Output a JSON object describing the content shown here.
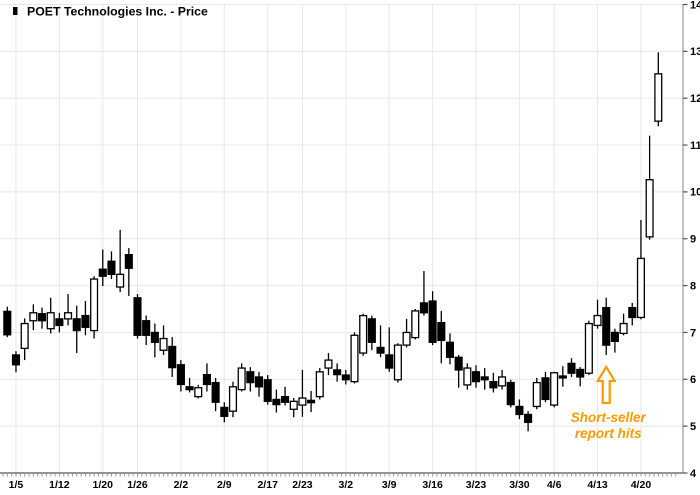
{
  "header": {
    "marker": "candlestick-bullet",
    "title": "POET Technologies Inc. - Price"
  },
  "colors": {
    "background": "#ffffff",
    "candle_up_fill": "#ffffff",
    "candle_down_fill": "#000000",
    "candle_border": "#000000",
    "grid": "#e8e8e8",
    "axis_line": "#555555",
    "right_axis_line": "#999999",
    "tick": "#999999",
    "label_text": "#000000",
    "annotation_orange": "#FF9900"
  },
  "chart_data": {
    "type": "candlestick",
    "title": "POET Technologies Inc. - Price",
    "xlabel": "",
    "ylabel": "",
    "ylim": [
      4,
      14
    ],
    "y_ticks": [
      4,
      5,
      6,
      7,
      8,
      9,
      10,
      11,
      12,
      13,
      14
    ],
    "grid": true,
    "x_tick_labels": [
      "1/5",
      "1/12",
      "1/20",
      "1/26",
      "2/2",
      "2/9",
      "2/17",
      "2/23",
      "3/2",
      "3/9",
      "3/16",
      "3/23",
      "3/30",
      "4/6",
      "4/13",
      "4/20"
    ],
    "candles": [
      {
        "date": "1/4",
        "o": 7.45,
        "h": 7.55,
        "l": 6.9,
        "c": 6.95
      },
      {
        "date": "1/5",
        "o": 6.52,
        "h": 6.6,
        "l": 6.15,
        "c": 6.31
      },
      {
        "date": "1/6",
        "o": 6.66,
        "h": 7.3,
        "l": 6.41,
        "c": 7.19
      },
      {
        "date": "1/7",
        "o": 7.25,
        "h": 7.6,
        "l": 7.05,
        "c": 7.42
      },
      {
        "date": "1/8",
        "o": 7.4,
        "h": 7.53,
        "l": 7.08,
        "c": 7.25
      },
      {
        "date": "1/11",
        "o": 7.08,
        "h": 7.74,
        "l": 6.98,
        "c": 7.42
      },
      {
        "date": "1/12",
        "o": 7.29,
        "h": 7.42,
        "l": 7.0,
        "c": 7.15
      },
      {
        "date": "1/13",
        "o": 7.29,
        "h": 7.82,
        "l": 7.15,
        "c": 7.42
      },
      {
        "date": "1/14",
        "o": 7.29,
        "h": 7.57,
        "l": 6.56,
        "c": 7.04
      },
      {
        "date": "1/15",
        "o": 7.36,
        "h": 7.67,
        "l": 6.94,
        "c": 7.11
      },
      {
        "date": "1/19",
        "o": 7.04,
        "h": 8.2,
        "l": 6.87,
        "c": 8.14
      },
      {
        "date": "1/20",
        "o": 8.35,
        "h": 8.77,
        "l": 7.99,
        "c": 8.2
      },
      {
        "date": "1/21",
        "o": 8.52,
        "h": 8.73,
        "l": 8.14,
        "c": 8.24
      },
      {
        "date": "1/22",
        "o": 7.97,
        "h": 9.19,
        "l": 7.86,
        "c": 8.24
      },
      {
        "date": "1/25",
        "o": 8.66,
        "h": 8.8,
        "l": 7.78,
        "c": 8.37
      },
      {
        "date": "1/26",
        "o": 7.74,
        "h": 7.82,
        "l": 6.87,
        "c": 6.94
      },
      {
        "date": "1/27",
        "o": 7.25,
        "h": 7.36,
        "l": 6.73,
        "c": 6.94
      },
      {
        "date": "1/28",
        "o": 7.0,
        "h": 7.19,
        "l": 6.47,
        "c": 6.79
      },
      {
        "date": "1/29",
        "o": 6.62,
        "h": 7.15,
        "l": 6.52,
        "c": 6.87
      },
      {
        "date": "2/1",
        "o": 6.7,
        "h": 6.9,
        "l": 6.05,
        "c": 6.25
      },
      {
        "date": "2/2",
        "o": 6.31,
        "h": 6.41,
        "l": 5.74,
        "c": 5.89
      },
      {
        "date": "2/3",
        "o": 5.84,
        "h": 6.03,
        "l": 5.72,
        "c": 5.78
      },
      {
        "date": "2/4",
        "o": 5.63,
        "h": 5.88,
        "l": 5.59,
        "c": 5.82
      },
      {
        "date": "2/5",
        "o": 6.1,
        "h": 6.34,
        "l": 5.74,
        "c": 5.89
      },
      {
        "date": "2/8",
        "o": 5.93,
        "h": 6.03,
        "l": 5.32,
        "c": 5.51
      },
      {
        "date": "2/9",
        "o": 5.4,
        "h": 5.51,
        "l": 5.08,
        "c": 5.21
      },
      {
        "date": "2/10",
        "o": 5.32,
        "h": 5.95,
        "l": 5.19,
        "c": 5.84
      },
      {
        "date": "2/11",
        "o": 5.78,
        "h": 6.34,
        "l": 5.74,
        "c": 6.24
      },
      {
        "date": "2/12",
        "o": 6.16,
        "h": 6.26,
        "l": 5.74,
        "c": 5.93
      },
      {
        "date": "2/16",
        "o": 6.05,
        "h": 6.16,
        "l": 5.63,
        "c": 5.84
      },
      {
        "date": "2/17",
        "o": 5.99,
        "h": 6.09,
        "l": 5.46,
        "c": 5.53
      },
      {
        "date": "2/18",
        "o": 5.57,
        "h": 5.78,
        "l": 5.29,
        "c": 5.46
      },
      {
        "date": "2/19",
        "o": 5.63,
        "h": 5.84,
        "l": 5.44,
        "c": 5.51
      },
      {
        "date": "2/22",
        "o": 5.36,
        "h": 5.6,
        "l": 5.19,
        "c": 5.53
      },
      {
        "date": "2/23",
        "o": 5.45,
        "h": 6.2,
        "l": 5.2,
        "c": 5.6
      },
      {
        "date": "2/24",
        "o": 5.55,
        "h": 5.75,
        "l": 5.3,
        "c": 5.5
      },
      {
        "date": "2/25",
        "o": 5.63,
        "h": 6.24,
        "l": 5.57,
        "c": 6.16
      },
      {
        "date": "2/26",
        "o": 6.24,
        "h": 6.56,
        "l": 6.09,
        "c": 6.41
      },
      {
        "date": "3/1",
        "o": 6.2,
        "h": 6.34,
        "l": 5.95,
        "c": 6.1
      },
      {
        "date": "3/2",
        "o": 6.09,
        "h": 6.2,
        "l": 5.89,
        "c": 5.99
      },
      {
        "date": "3/3",
        "o": 5.95,
        "h": 7.0,
        "l": 5.91,
        "c": 6.94
      },
      {
        "date": "3/4",
        "o": 6.56,
        "h": 7.4,
        "l": 6.5,
        "c": 7.36
      },
      {
        "date": "3/5",
        "o": 7.29,
        "h": 7.36,
        "l": 6.62,
        "c": 6.79
      },
      {
        "date": "3/8",
        "o": 6.68,
        "h": 7.15,
        "l": 6.47,
        "c": 6.56
      },
      {
        "date": "3/9",
        "o": 6.52,
        "h": 7.11,
        "l": 6.16,
        "c": 6.24
      },
      {
        "date": "3/10",
        "o": 5.99,
        "h": 6.77,
        "l": 5.93,
        "c": 6.73
      },
      {
        "date": "3/11",
        "o": 6.73,
        "h": 7.29,
        "l": 6.68,
        "c": 7.0
      },
      {
        "date": "3/12",
        "o": 6.89,
        "h": 7.5,
        "l": 6.85,
        "c": 7.46
      },
      {
        "date": "3/15",
        "o": 7.63,
        "h": 8.31,
        "l": 7.36,
        "c": 7.42
      },
      {
        "date": "3/16",
        "o": 7.67,
        "h": 7.88,
        "l": 6.73,
        "c": 6.79
      },
      {
        "date": "3/17",
        "o": 7.21,
        "h": 7.46,
        "l": 6.34,
        "c": 6.83
      },
      {
        "date": "3/18",
        "o": 6.79,
        "h": 6.98,
        "l": 6.32,
        "c": 6.47
      },
      {
        "date": "3/19",
        "o": 6.47,
        "h": 6.52,
        "l": 5.82,
        "c": 6.2
      },
      {
        "date": "3/22",
        "o": 5.88,
        "h": 6.34,
        "l": 5.78,
        "c": 6.24
      },
      {
        "date": "3/23",
        "o": 6.16,
        "h": 6.3,
        "l": 5.82,
        "c": 5.95
      },
      {
        "date": "3/24",
        "o": 6.05,
        "h": 6.24,
        "l": 5.78,
        "c": 5.99
      },
      {
        "date": "3/25",
        "o": 5.95,
        "h": 6.14,
        "l": 5.72,
        "c": 5.82
      },
      {
        "date": "3/26",
        "o": 5.86,
        "h": 6.2,
        "l": 5.78,
        "c": 6.05
      },
      {
        "date": "3/29",
        "o": 5.93,
        "h": 5.99,
        "l": 5.4,
        "c": 5.46
      },
      {
        "date": "3/30",
        "o": 5.42,
        "h": 5.57,
        "l": 5.15,
        "c": 5.25
      },
      {
        "date": "3/31",
        "o": 5.25,
        "h": 5.32,
        "l": 4.89,
        "c": 5.08
      },
      {
        "date": "4/1",
        "o": 5.42,
        "h": 6.03,
        "l": 5.36,
        "c": 5.93
      },
      {
        "date": "4/5",
        "o": 6.03,
        "h": 6.16,
        "l": 5.51,
        "c": 5.57
      },
      {
        "date": "4/6",
        "o": 5.45,
        "h": 6.16,
        "l": 5.4,
        "c": 6.14
      },
      {
        "date": "4/7",
        "o": 6.07,
        "h": 6.28,
        "l": 5.84,
        "c": 6.03
      },
      {
        "date": "4/8",
        "o": 6.34,
        "h": 6.45,
        "l": 6.05,
        "c": 6.13
      },
      {
        "date": "4/9",
        "o": 6.21,
        "h": 6.26,
        "l": 5.85,
        "c": 6.05
      },
      {
        "date": "4/12",
        "o": 6.13,
        "h": 7.25,
        "l": 6.09,
        "c": 7.19
      },
      {
        "date": "4/13",
        "o": 7.15,
        "h": 7.7,
        "l": 7.08,
        "c": 7.36
      },
      {
        "date": "4/14",
        "o": 7.53,
        "h": 7.74,
        "l": 6.52,
        "c": 6.73
      },
      {
        "date": "4/15",
        "o": 7.0,
        "h": 7.08,
        "l": 6.57,
        "c": 6.81
      },
      {
        "date": "4/16",
        "o": 6.98,
        "h": 7.4,
        "l": 6.94,
        "c": 7.19
      },
      {
        "date": "4/19",
        "o": 7.53,
        "h": 7.63,
        "l": 7.15,
        "c": 7.32
      },
      {
        "date": "4/20",
        "o": 7.32,
        "h": 9.4,
        "l": 7.28,
        "c": 8.58
      },
      {
        "date": "4/21",
        "o": 9.04,
        "h": 11.2,
        "l": 8.98,
        "c": 10.26
      },
      {
        "date": "4/22",
        "o": 11.51,
        "h": 12.98,
        "l": 11.4,
        "c": 12.52
      }
    ],
    "annotation": {
      "line1": "Short-seller",
      "line2": "report hits",
      "color": "#FF9900",
      "points_to_date": "4/14",
      "legend_position": "none"
    }
  }
}
